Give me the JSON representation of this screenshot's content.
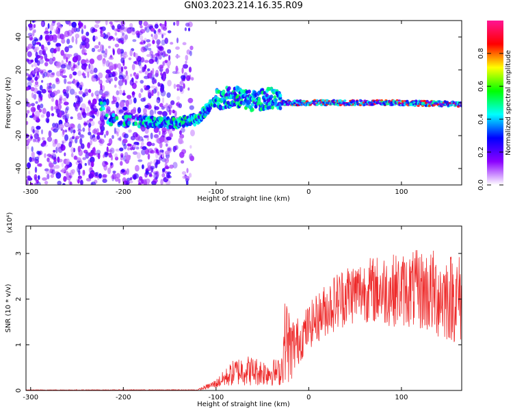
{
  "title": "GN03.2023.214.16.35.R09",
  "colors": {
    "snr_line": "#ee2a2a",
    "gradient": [
      "#ffffff",
      "#8b00ff",
      "#0000ff",
      "#00ffff",
      "#00ff00",
      "#ffff00",
      "#ff0000",
      "#ff1493"
    ]
  },
  "chart_data": [
    {
      "type": "heatmap",
      "name": "spectrogram",
      "title": "",
      "xlabel": "Height of straight line (km)",
      "ylabel": "Frequency (Hz)",
      "xlim": [
        -305,
        165
      ],
      "ylim": [
        -50,
        50
      ],
      "x_ticks": [
        -300,
        -200,
        -100,
        0,
        100
      ],
      "y_ticks": [
        -40,
        -20,
        0,
        20,
        40
      ],
      "grid": false,
      "colorbar": {
        "label": "Normalized spectral amplitude",
        "range": [
          0,
          1
        ],
        "ticks": [
          "0.0",
          "0.2",
          "0.4",
          "0.6",
          "0.8"
        ]
      },
      "features": [
        {
          "desc": "noise",
          "x_range": [
            -305,
            -125
          ],
          "freq_range": [
            -50,
            50
          ]
        },
        {
          "desc": "signal track",
          "points": [
            [
              -220,
              -10
            ],
            [
              -170,
              -12
            ],
            [
              -140,
              -12
            ],
            [
              -120,
              -10
            ],
            [
              -100,
              2
            ],
            [
              -80,
              4
            ],
            [
              -60,
              1
            ],
            [
              -40,
              3
            ],
            [
              -30,
              0
            ],
            [
              0,
              0
            ],
            [
              100,
              0
            ],
            [
              165,
              -1
            ]
          ]
        }
      ]
    },
    {
      "type": "line",
      "name": "snr",
      "title": "",
      "xlabel": "Height of straight line (km)",
      "ylabel": "SNR (10 * v/v)",
      "y_multiplier": "(x10⁴)",
      "xlim": [
        -305,
        165
      ],
      "ylim": [
        0,
        3.6
      ],
      "x_ticks": [
        -300,
        -200,
        -100,
        0,
        100
      ],
      "y_ticks": [
        0,
        1,
        2,
        3
      ],
      "grid": false,
      "envelope": {
        "x": [
          -305,
          -120,
          -100,
          -80,
          -70,
          -50,
          -30,
          -25,
          -20,
          -10,
          0,
          20,
          40,
          60,
          80,
          100,
          120,
          140,
          165
        ],
        "y_mean": [
          0.01,
          0.01,
          0.15,
          0.4,
          0.45,
          0.4,
          0.4,
          1.2,
          0.9,
          1.1,
          1.4,
          1.8,
          2.1,
          2.2,
          2.2,
          2.2,
          2.2,
          2.1,
          2.0
        ],
        "y_spread": [
          0.005,
          0.01,
          0.1,
          0.3,
          0.35,
          0.3,
          0.3,
          1.0,
          0.8,
          0.5,
          0.5,
          0.6,
          0.7,
          0.7,
          0.8,
          0.8,
          0.9,
          1.0,
          1.0
        ]
      }
    }
  ]
}
